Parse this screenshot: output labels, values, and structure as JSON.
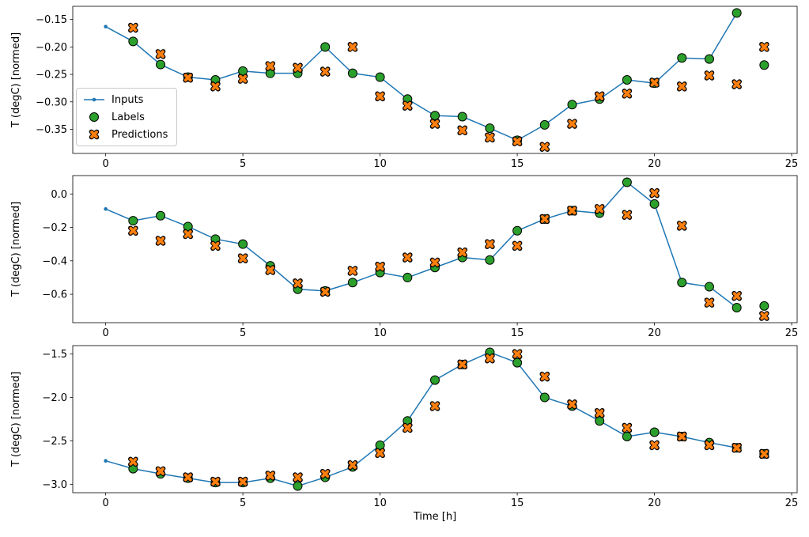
{
  "figure": {
    "xlabel": "Time [h]",
    "ylabel": "T (degC) [normed]",
    "legend": {
      "position": "upper-left-inside-first-subplot",
      "items": [
        {
          "label": "Inputs",
          "marker": "line-dot"
        },
        {
          "label": "Labels",
          "marker": "circle"
        },
        {
          "label": "Predictions",
          "marker": "x-cross"
        }
      ]
    },
    "colors": {
      "inputs": "#1f77b4",
      "labels": "#2ca02c",
      "predictions": "#ff7f0e",
      "edge": "#000000",
      "spine": "#000000",
      "background": "#ffffff"
    }
  },
  "chart_data": [
    {
      "type": "line",
      "title": "",
      "xlabel": "",
      "ylabel": "T (degC) [normed]",
      "xlim": [
        -1.2,
        25.2
      ],
      "ylim": [
        -0.394,
        -0.126
      ],
      "xticks": [
        0,
        5,
        10,
        15,
        20,
        25
      ],
      "yticks": [
        -0.15,
        -0.2,
        -0.25,
        -0.3,
        -0.35
      ],
      "ytick_decimals": 2,
      "grid": false,
      "series": [
        {
          "name": "Inputs",
          "x": [
            0,
            1,
            2,
            3,
            4,
            5,
            6,
            7,
            8,
            9,
            10,
            11,
            12,
            13,
            14,
            15,
            16,
            17,
            18,
            19,
            20,
            21,
            22,
            23
          ],
          "y": [
            -0.163,
            -0.19,
            -0.232,
            -0.255,
            -0.26,
            -0.244,
            -0.248,
            -0.248,
            -0.2,
            -0.248,
            -0.255,
            -0.295,
            -0.325,
            -0.327,
            -0.348,
            -0.37,
            -0.342,
            -0.305,
            -0.295,
            -0.26,
            -0.266,
            -0.22,
            -0.222,
            -0.138
          ]
        },
        {
          "name": "Labels",
          "x": [
            1,
            2,
            3,
            4,
            5,
            6,
            7,
            8,
            9,
            10,
            11,
            12,
            13,
            14,
            15,
            16,
            17,
            18,
            19,
            20,
            21,
            22,
            23,
            24
          ],
          "y": [
            -0.19,
            -0.232,
            -0.255,
            -0.26,
            -0.244,
            -0.248,
            -0.248,
            -0.2,
            -0.248,
            -0.255,
            -0.295,
            -0.325,
            -0.327,
            -0.348,
            -0.37,
            -0.342,
            -0.305,
            -0.295,
            -0.26,
            -0.266,
            -0.22,
            -0.222,
            -0.138,
            -0.233
          ]
        },
        {
          "name": "Predictions",
          "x": [
            1,
            2,
            3,
            4,
            5,
            6,
            7,
            8,
            9,
            10,
            11,
            12,
            13,
            14,
            15,
            16,
            17,
            18,
            19,
            20,
            21,
            22,
            23,
            24
          ],
          "y": [
            -0.165,
            -0.213,
            -0.256,
            -0.272,
            -0.258,
            -0.235,
            -0.238,
            -0.245,
            -0.2,
            -0.29,
            -0.307,
            -0.34,
            -0.352,
            -0.365,
            -0.372,
            -0.382,
            -0.34,
            -0.29,
            -0.285,
            -0.265,
            -0.272,
            -0.252,
            -0.268,
            -0.2
          ]
        }
      ]
    },
    {
      "type": "line",
      "title": "",
      "xlabel": "",
      "ylabel": "T (degC) [normed]",
      "xlim": [
        -1.2,
        25.2
      ],
      "ylim": [
        -0.77,
        0.11
      ],
      "xticks": [
        0,
        5,
        10,
        15,
        20,
        25
      ],
      "yticks": [
        0.0,
        -0.2,
        -0.4,
        -0.6
      ],
      "ytick_decimals": 1,
      "grid": false,
      "series": [
        {
          "name": "Inputs",
          "x": [
            0,
            1,
            2,
            3,
            4,
            5,
            6,
            7,
            8,
            9,
            10,
            11,
            12,
            13,
            14,
            15,
            16,
            17,
            18,
            19,
            20,
            21,
            22,
            23
          ],
          "y": [
            -0.09,
            -0.16,
            -0.13,
            -0.195,
            -0.27,
            -0.3,
            -0.43,
            -0.57,
            -0.58,
            -0.53,
            -0.47,
            -0.5,
            -0.44,
            -0.38,
            -0.395,
            -0.22,
            -0.15,
            -0.1,
            -0.115,
            0.07,
            -0.06,
            -0.53,
            -0.555,
            -0.68
          ]
        },
        {
          "name": "Labels",
          "x": [
            1,
            2,
            3,
            4,
            5,
            6,
            7,
            8,
            9,
            10,
            11,
            12,
            13,
            14,
            15,
            16,
            17,
            18,
            19,
            20,
            21,
            22,
            23,
            24
          ],
          "y": [
            -0.16,
            -0.13,
            -0.195,
            -0.27,
            -0.3,
            -0.43,
            -0.57,
            -0.58,
            -0.53,
            -0.47,
            -0.5,
            -0.44,
            -0.38,
            -0.395,
            -0.22,
            -0.15,
            -0.1,
            -0.115,
            0.07,
            -0.06,
            -0.53,
            -0.555,
            -0.68,
            -0.67
          ]
        },
        {
          "name": "Predictions",
          "x": [
            1,
            2,
            3,
            4,
            5,
            6,
            7,
            8,
            9,
            10,
            11,
            12,
            13,
            14,
            15,
            16,
            17,
            18,
            19,
            20,
            21,
            22,
            23,
            24
          ],
          "y": [
            -0.22,
            -0.28,
            -0.24,
            -0.31,
            -0.385,
            -0.455,
            -0.535,
            -0.585,
            -0.46,
            -0.435,
            -0.38,
            -0.41,
            -0.35,
            -0.3,
            -0.31,
            -0.15,
            -0.1,
            -0.09,
            -0.125,
            0.005,
            -0.19,
            -0.65,
            -0.61,
            -0.73
          ]
        }
      ]
    },
    {
      "type": "line",
      "title": "",
      "xlabel": "Time [h]",
      "ylabel": "T (degC) [normed]",
      "xlim": [
        -1.2,
        25.2
      ],
      "ylim": [
        -3.097,
        -1.403
      ],
      "xticks": [
        0,
        5,
        10,
        15,
        20,
        25
      ],
      "yticks": [
        -1.5,
        -2.0,
        -2.5,
        -3.0
      ],
      "ytick_decimals": 1,
      "grid": false,
      "series": [
        {
          "name": "Inputs",
          "x": [
            0,
            1,
            2,
            3,
            4,
            5,
            6,
            7,
            8,
            9,
            10,
            11,
            12,
            13,
            14,
            15,
            16,
            17,
            18,
            19,
            20,
            21,
            22,
            23
          ],
          "y": [
            -2.73,
            -2.82,
            -2.88,
            -2.93,
            -2.98,
            -2.98,
            -2.93,
            -3.02,
            -2.92,
            -2.8,
            -2.55,
            -2.27,
            -1.8,
            -1.62,
            -1.48,
            -1.6,
            -2.0,
            -2.1,
            -2.27,
            -2.45,
            -2.4,
            -2.45,
            -2.52,
            -2.58
          ]
        },
        {
          "name": "Labels",
          "x": [
            1,
            2,
            3,
            4,
            5,
            6,
            7,
            8,
            9,
            10,
            11,
            12,
            13,
            14,
            15,
            16,
            17,
            18,
            19,
            20,
            21,
            22,
            23,
            24
          ],
          "y": [
            -2.82,
            -2.88,
            -2.93,
            -2.98,
            -2.98,
            -2.93,
            -3.02,
            -2.92,
            -2.8,
            -2.55,
            -2.27,
            -1.8,
            -1.62,
            -1.48,
            -1.6,
            -2.0,
            -2.1,
            -2.27,
            -2.45,
            -2.4,
            -2.45,
            -2.52,
            -2.58,
            -2.65
          ]
        },
        {
          "name": "Predictions",
          "x": [
            1,
            2,
            3,
            4,
            5,
            6,
            7,
            8,
            9,
            10,
            11,
            12,
            13,
            14,
            15,
            16,
            17,
            18,
            19,
            20,
            21,
            22,
            23,
            24
          ],
          "y": [
            -2.74,
            -2.85,
            -2.92,
            -2.97,
            -2.97,
            -2.9,
            -2.92,
            -2.88,
            -2.78,
            -2.64,
            -2.35,
            -2.1,
            -1.62,
            -1.55,
            -1.5,
            -1.76,
            -2.08,
            -2.18,
            -2.35,
            -2.55,
            -2.45,
            -2.55,
            -2.58,
            -2.65
          ]
        }
      ]
    }
  ]
}
